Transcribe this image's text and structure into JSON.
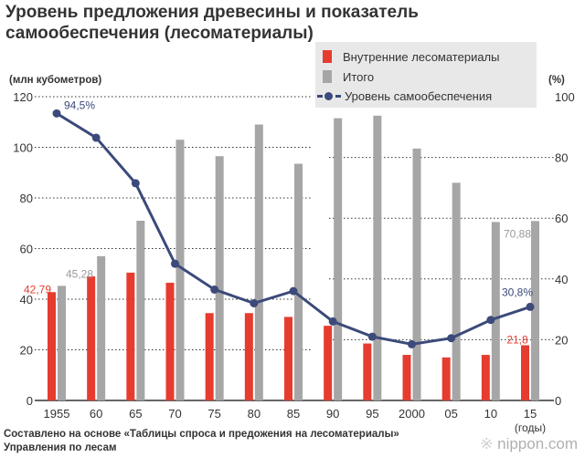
{
  "title_line1": "Уровень предложения древесины и показатель",
  "title_line2": "самообеспечения (лесоматериалы)",
  "left_unit": "(млн кубометров)",
  "right_unit": "(%)",
  "years_label": "(годы)",
  "source_line1": "Составлено на основе «Таблицы спроса и предожения на лесоматериалы»",
  "source_line2": "Управления по лесам",
  "logo": {
    "mark": "※",
    "text": "nippon.com"
  },
  "colors": {
    "domestic": "#e63c2f",
    "total": "#a6a6a6",
    "ratio": "#3b4a7a",
    "grid": "#333333"
  },
  "legend": {
    "domestic": "Внутренние лесоматериалы",
    "total": "Итого",
    "ratio": "Уровень самообеспечения"
  },
  "annotations": {
    "first_domestic": "42,79",
    "first_total": "45,28",
    "first_ratio": "94,5%",
    "last_domestic": "21,8",
    "last_total": "70,88",
    "last_ratio": "30,8%"
  },
  "chart_data": {
    "type": "bar+line",
    "title": "Уровень предложения древесины и показатель самообеспечения (лесоматериалы)",
    "categories": [
      "1955",
      "60",
      "65",
      "70",
      "75",
      "80",
      "85",
      "90",
      "95",
      "2000",
      "05",
      "10",
      "15"
    ],
    "xlabel": "(годы)",
    "ylabel_left": "(млн кубометров)",
    "ylabel_right": "(%)",
    "ylim_left": [
      0,
      120
    ],
    "ylim_right": [
      0,
      100
    ],
    "yticks_left": [
      "0",
      "20",
      "40",
      "60",
      "80",
      "100",
      "120"
    ],
    "yticks_right": [
      "0",
      "20",
      "40",
      "60",
      "80",
      "100"
    ],
    "series": [
      {
        "name": "Внутренние лесоматериалы",
        "type": "bar",
        "axis": "left",
        "values": [
          42.79,
          49,
          50.5,
          46.5,
          34.5,
          34.5,
          33,
          29.5,
          22.5,
          18,
          17,
          18,
          21.8
        ]
      },
      {
        "name": "Итого",
        "type": "bar",
        "axis": "left",
        "values": [
          45.28,
          57,
          71,
          103,
          96.5,
          109,
          93.5,
          111.5,
          112.5,
          99.5,
          86,
          70.5,
          70.88
        ]
      },
      {
        "name": "Уровень самообеспечения",
        "type": "line",
        "axis": "right",
        "values": [
          94.5,
          86.5,
          71.5,
          45,
          36.5,
          32,
          36,
          26,
          21,
          18.5,
          20.5,
          26.5,
          30.8
        ]
      }
    ]
  }
}
